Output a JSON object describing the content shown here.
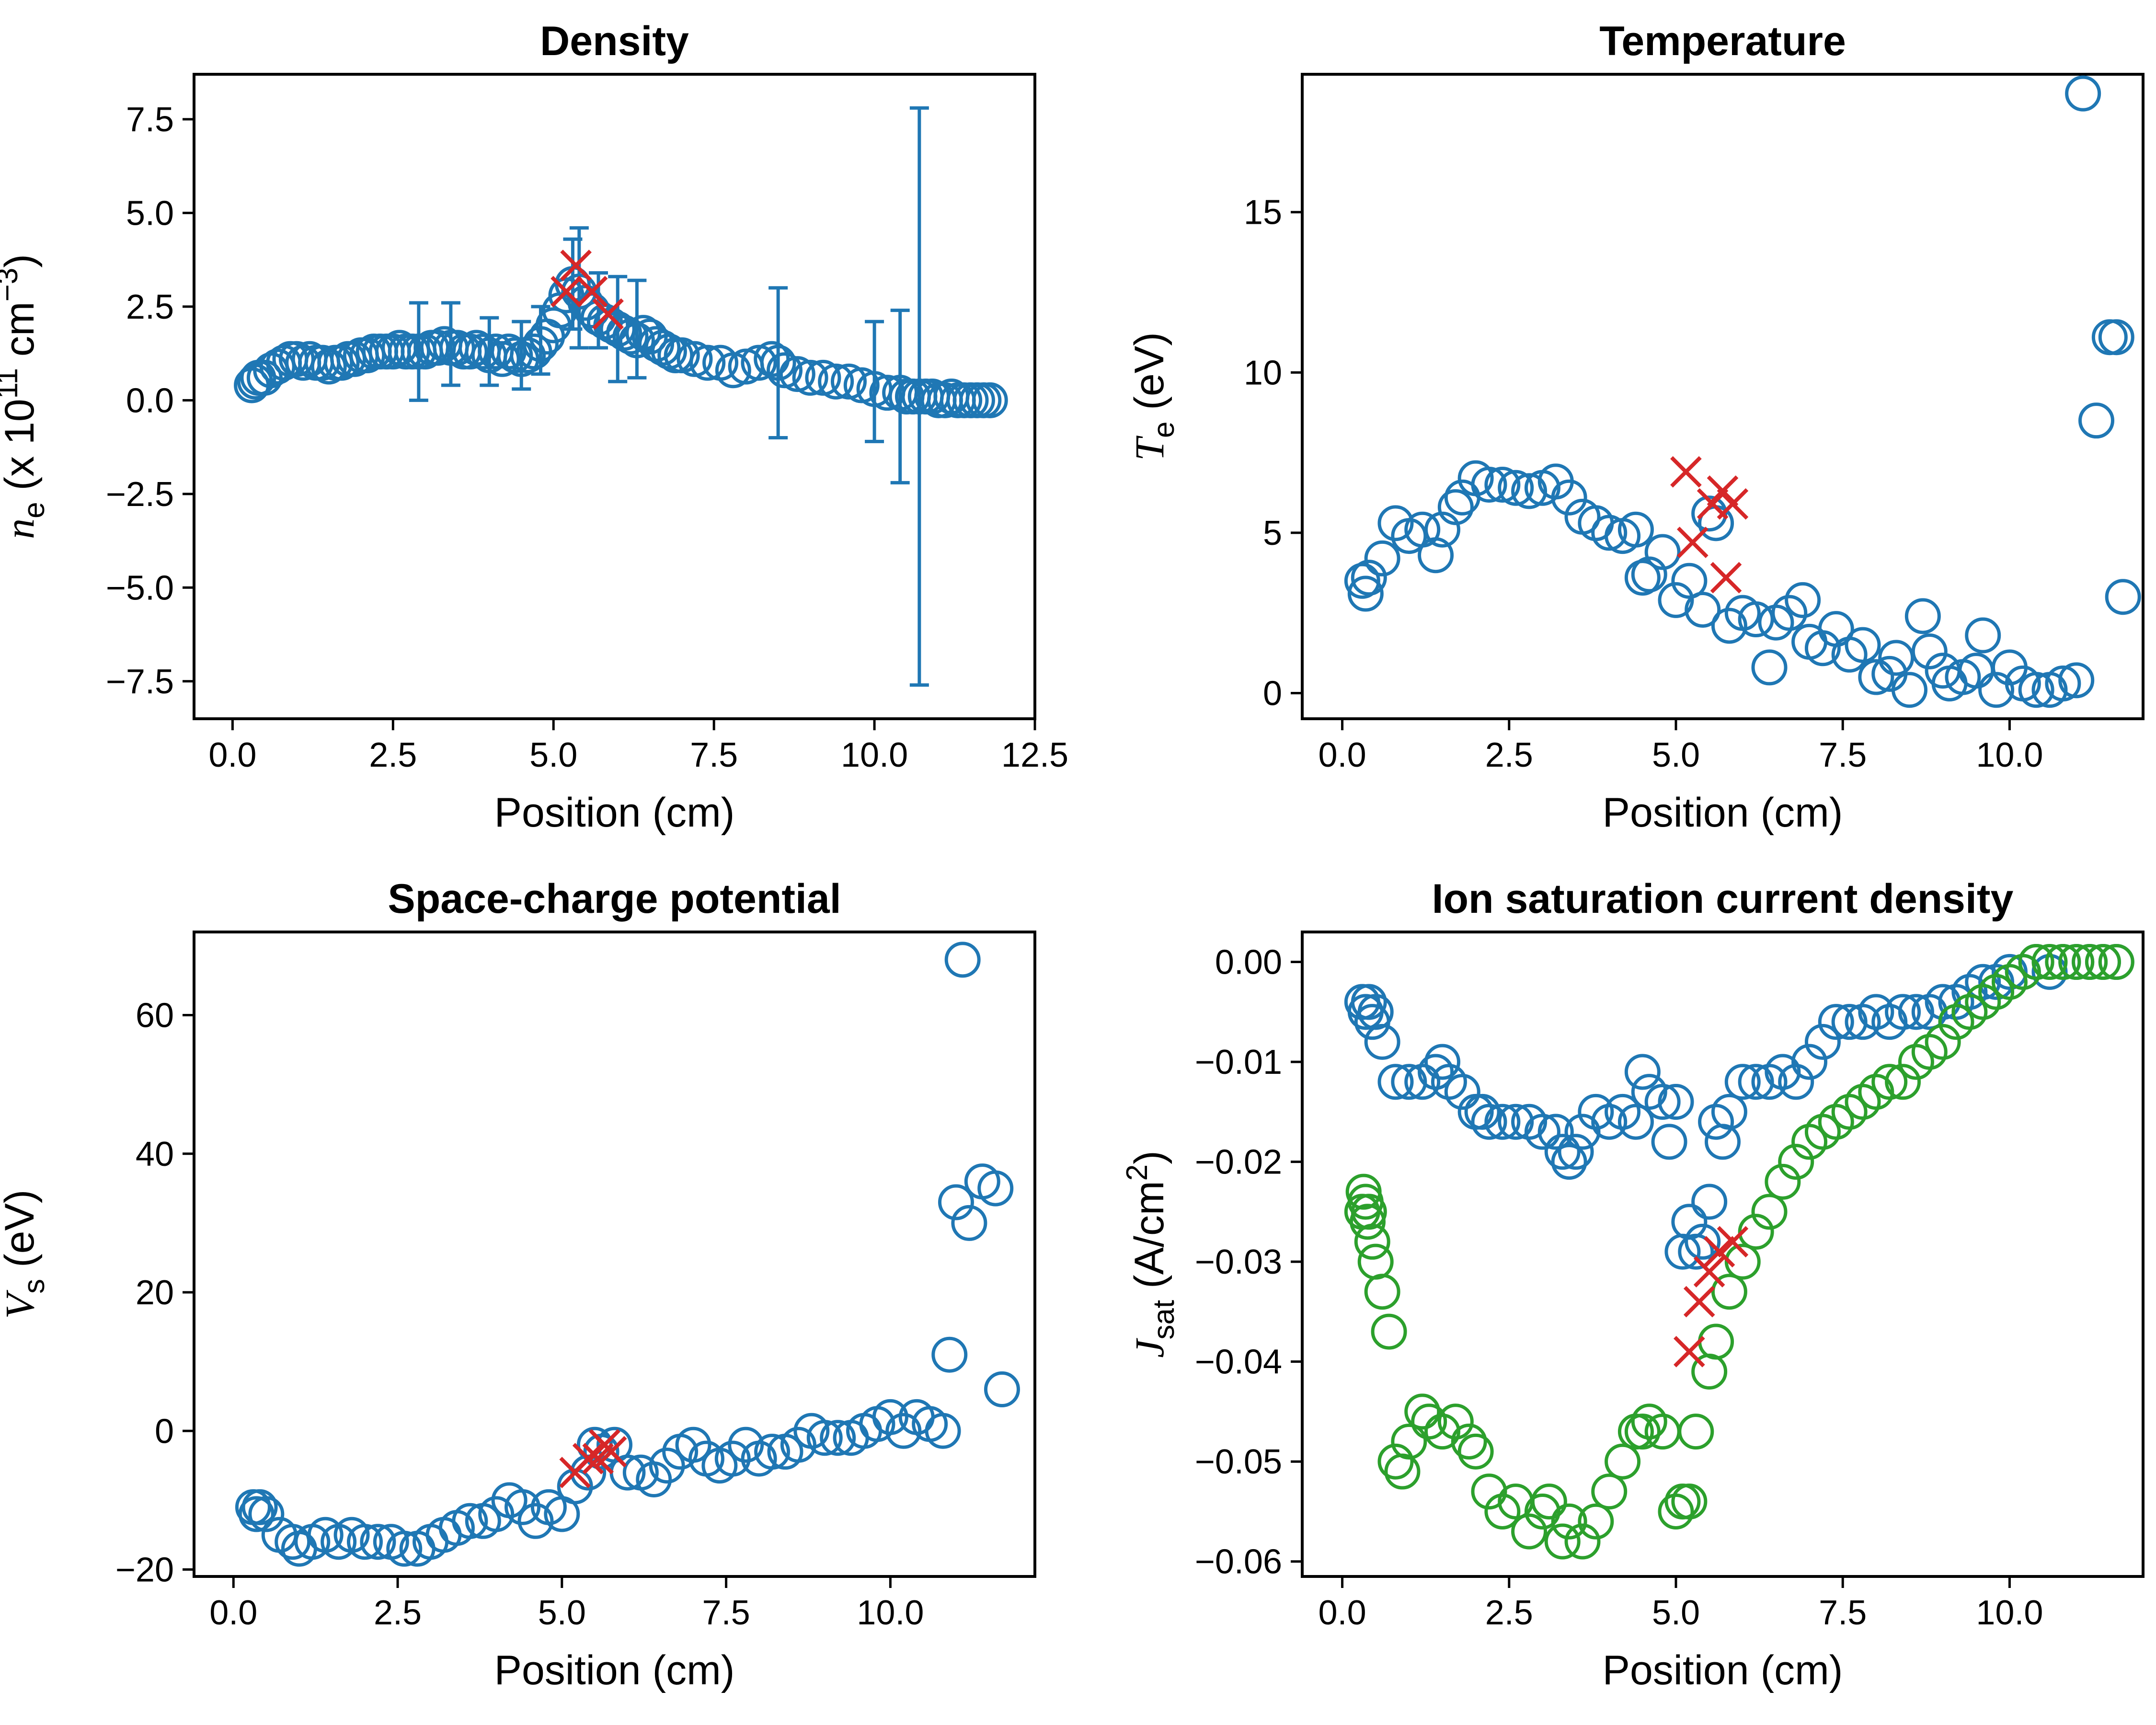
{
  "colors": {
    "blue": "#1f77b4",
    "green": "#2ca02c",
    "red": "#d62728"
  },
  "chart_data": [
    {
      "id": "density",
      "type": "scatter",
      "title": "Density",
      "xlabel": "Position (cm)",
      "ylabel": {
        "symbol": "n",
        "sub": "e",
        "text": " (x 10",
        "sup": "11",
        "tail": " cm",
        "sup2": "−3",
        "close": ")"
      },
      "xlim": [
        -0.6,
        12.5
      ],
      "ylim": [
        -8.5,
        8.7
      ],
      "xticks": [
        0,
        2.5,
        5,
        7.5,
        10,
        12.5
      ],
      "xtick_labels": [
        "0.0",
        "2.5",
        "5.0",
        "7.5",
        "10.0",
        "12.5"
      ],
      "yticks": [
        -7.5,
        -5,
        -2.5,
        0,
        2.5,
        5,
        7.5
      ],
      "ytick_labels": [
        "−7.5",
        "−5.0",
        "−2.5",
        "0.0",
        "2.5",
        "5.0",
        "7.5"
      ],
      "series": [
        {
          "marker": "circle",
          "color": "#1f77b4",
          "x": [
            0.3,
            0.35,
            0.4,
            0.5,
            0.6,
            0.7,
            0.8,
            0.9,
            1.0,
            1.1,
            1.2,
            1.3,
            1.4,
            1.5,
            1.6,
            1.7,
            1.8,
            1.9,
            2.0,
            2.1,
            2.2,
            2.3,
            2.4,
            2.5,
            2.6,
            2.7,
            2.8,
            2.9,
            3.0,
            3.1,
            3.2,
            3.3,
            3.4,
            3.5,
            3.6,
            3.7,
            3.8,
            3.9,
            4.0,
            4.1,
            4.2,
            4.3,
            4.4,
            4.5,
            4.6,
            4.7,
            4.8,
            4.9,
            5.0,
            5.1,
            5.2,
            5.3,
            5.4,
            5.5,
            5.6,
            5.7,
            5.8,
            5.9,
            6.0,
            6.1,
            6.2,
            6.3,
            6.4,
            6.5,
            6.6,
            6.7,
            6.8,
            6.9,
            7.0,
            7.2,
            7.4,
            7.6,
            7.8,
            8.0,
            8.2,
            8.4,
            8.5,
            8.6,
            8.8,
            9.0,
            9.2,
            9.4,
            9.6,
            9.8,
            10.0,
            10.2,
            10.4,
            10.5,
            10.6,
            10.7,
            10.8,
            10.9,
            11.0,
            11.1,
            11.2,
            11.3,
            11.4,
            11.5,
            11.6,
            11.7,
            11.8
          ],
          "y": [
            0.4,
            0.5,
            0.6,
            0.6,
            0.8,
            0.9,
            1.0,
            1.1,
            1.1,
            1.0,
            1.1,
            1.0,
            1.0,
            0.9,
            1.0,
            1.0,
            1.1,
            1.1,
            1.2,
            1.2,
            1.3,
            1.3,
            1.3,
            1.3,
            1.4,
            1.3,
            1.3,
            1.3,
            1.3,
            1.4,
            1.4,
            1.5,
            1.4,
            1.4,
            1.3,
            1.3,
            1.4,
            1.3,
            1.2,
            1.3,
            1.1,
            1.3,
            1.2,
            1.1,
            1.2,
            1.3,
            1.5,
            1.7,
            2.0,
            2.4,
            2.8,
            3.1,
            2.9,
            2.6,
            2.4,
            2.2,
            2.1,
            2.0,
            1.9,
            1.8,
            1.7,
            1.6,
            1.8,
            1.7,
            1.5,
            1.4,
            1.3,
            1.2,
            1.2,
            1.1,
            1.0,
            1.0,
            0.8,
            0.9,
            1.0,
            1.1,
            1.0,
            0.8,
            0.7,
            0.6,
            0.6,
            0.5,
            0.5,
            0.4,
            0.3,
            0.2,
            0.2,
            0.1,
            0.1,
            0.1,
            0.1,
            0.1,
            0.0,
            0.0,
            0.1,
            0.0,
            0.0,
            0.0,
            0.0,
            0.0,
            0.0
          ]
        },
        {
          "marker": "x",
          "color": "#d62728",
          "x": [
            5.2,
            5.35,
            5.6,
            5.85
          ],
          "y": [
            2.9,
            3.6,
            2.9,
            2.3
          ]
        }
      ],
      "errorbars": [
        {
          "x": 2.9,
          "y": 1.3,
          "err": 1.3
        },
        {
          "x": 3.4,
          "y": 1.5,
          "err": 1.1
        },
        {
          "x": 4.0,
          "y": 1.3,
          "err": 0.9
        },
        {
          "x": 4.5,
          "y": 1.2,
          "err": 0.9
        },
        {
          "x": 4.8,
          "y": 1.6,
          "err": 0.9
        },
        {
          "x": 5.3,
          "y": 3.1,
          "err": 1.2
        },
        {
          "x": 5.4,
          "y": 3.0,
          "err": 1.6
        },
        {
          "x": 5.7,
          "y": 2.4,
          "err": 1.0
        },
        {
          "x": 6.0,
          "y": 1.9,
          "err": 1.4
        },
        {
          "x": 6.3,
          "y": 1.9,
          "err": 1.3
        },
        {
          "x": 8.5,
          "y": 1.0,
          "err": 2.0
        },
        {
          "x": 10.0,
          "y": 0.5,
          "err": 1.6
        },
        {
          "x": 10.4,
          "y": 0.1,
          "err": 2.3
        },
        {
          "x": 10.7,
          "y": 0.1,
          "err": 7.7
        }
      ]
    },
    {
      "id": "temperature",
      "type": "scatter",
      "title": "Temperature",
      "xlabel": "Position (cm)",
      "ylabel": {
        "symbol": "T",
        "sub": "e",
        "text": " (eV)"
      },
      "xlim": [
        -0.6,
        12.0
      ],
      "ylim": [
        -0.8,
        19.3
      ],
      "xticks": [
        0,
        2.5,
        5,
        7.5,
        10
      ],
      "xtick_labels": [
        "0.0",
        "2.5",
        "5.0",
        "7.5",
        "10.0"
      ],
      "yticks": [
        0,
        5,
        10,
        15
      ],
      "ytick_labels": [
        "0",
        "5",
        "10",
        "15"
      ],
      "series": [
        {
          "marker": "circle",
          "color": "#1f77b4",
          "x": [
            0.3,
            0.35,
            0.4,
            0.6,
            0.8,
            1.0,
            1.2,
            1.4,
            1.5,
            1.7,
            1.8,
            2.0,
            2.2,
            2.4,
            2.6,
            2.8,
            3.0,
            3.2,
            3.4,
            3.6,
            3.8,
            4.0,
            4.2,
            4.4,
            4.5,
            4.6,
            4.8,
            5.0,
            5.2,
            5.4,
            5.5,
            5.6,
            5.8,
            6.0,
            6.2,
            6.4,
            6.5,
            6.7,
            6.9,
            7.0,
            7.2,
            7.4,
            7.6,
            7.8,
            8.0,
            8.2,
            8.3,
            8.5,
            8.7,
            8.8,
            9.0,
            9.1,
            9.3,
            9.5,
            9.6,
            9.8,
            10.0,
            10.2,
            10.4,
            10.6,
            10.8,
            11.0,
            11.1,
            11.3,
            11.5,
            11.6,
            11.7
          ],
          "y": [
            3.5,
            3.1,
            3.6,
            4.2,
            5.3,
            4.9,
            5.1,
            4.3,
            5.1,
            5.8,
            6.1,
            6.7,
            6.5,
            6.5,
            6.4,
            6.3,
            6.4,
            6.6,
            6.1,
            5.5,
            5.3,
            5.0,
            4.9,
            5.1,
            3.6,
            3.7,
            4.4,
            2.9,
            3.5,
            2.6,
            5.6,
            5.3,
            2.1,
            2.5,
            2.3,
            0.8,
            2.2,
            2.5,
            2.9,
            1.6,
            1.4,
            2.0,
            1.2,
            1.5,
            0.5,
            0.6,
            1.1,
            0.1,
            2.4,
            1.3,
            0.7,
            0.3,
            0.5,
            0.7,
            1.8,
            0.1,
            0.8,
            0.3,
            0.1,
            0.1,
            0.3,
            0.4,
            18.7,
            8.5,
            11.1,
            11.1,
            3.0
          ]
        },
        {
          "marker": "x",
          "color": "#d62728",
          "x": [
            5.15,
            5.25,
            5.55,
            5.7,
            5.85,
            5.75
          ],
          "y": [
            6.9,
            4.7,
            5.9,
            6.3,
            5.9,
            3.6
          ]
        }
      ]
    },
    {
      "id": "space-charge",
      "type": "scatter",
      "title": "Space-charge potential",
      "xlabel": "Position (cm)",
      "ylabel": {
        "symbol": "V",
        "sub": "s",
        "text": " (eV)"
      },
      "xlim": [
        -0.6,
        12.2
      ],
      "ylim": [
        -21,
        72
      ],
      "xticks": [
        0,
        2.5,
        5,
        7.5,
        10
      ],
      "xtick_labels": [
        "0.0",
        "2.5",
        "5.0",
        "7.5",
        "10.0"
      ],
      "yticks": [
        -20,
        0,
        20,
        40,
        60
      ],
      "ytick_labels": [
        "−20",
        "0",
        "20",
        "40",
        "60"
      ],
      "series": [
        {
          "marker": "circle",
          "color": "#1f77b4",
          "x": [
            0.3,
            0.35,
            0.4,
            0.5,
            0.7,
            0.9,
            1.0,
            1.2,
            1.4,
            1.6,
            1.8,
            2.0,
            2.2,
            2.4,
            2.6,
            2.8,
            3.0,
            3.2,
            3.4,
            3.6,
            3.8,
            4.0,
            4.2,
            4.4,
            4.6,
            4.8,
            5.0,
            5.2,
            5.4,
            5.5,
            5.6,
            5.8,
            6.0,
            6.2,
            6.4,
            6.6,
            6.8,
            7.0,
            7.2,
            7.4,
            7.6,
            7.8,
            8.0,
            8.2,
            8.4,
            8.6,
            8.8,
            9.0,
            9.2,
            9.4,
            9.6,
            9.8,
            10.0,
            10.2,
            10.4,
            10.6,
            10.8,
            10.9,
            11.0,
            11.1,
            11.2,
            11.4,
            11.6,
            11.7
          ],
          "y": [
            -11,
            -12,
            -11,
            -12,
            -15,
            -16,
            -17,
            -16,
            -15,
            -16,
            -15,
            -16,
            -16,
            -16,
            -17,
            -17,
            -16,
            -15,
            -14,
            -13,
            -13,
            -12,
            -10,
            -11,
            -13,
            -11,
            -12,
            -8,
            -6,
            -2,
            -3,
            -2,
            -6,
            -6,
            -7,
            -5,
            -3,
            -2,
            -4,
            -5,
            -4,
            -2,
            -4,
            -3,
            -3,
            -2,
            0,
            -1,
            -1,
            -1,
            0,
            1,
            2,
            0,
            2,
            1,
            0,
            11,
            33,
            68,
            30,
            36,
            35,
            6
          ]
        },
        {
          "marker": "x",
          "color": "#d62728",
          "x": [
            5.2,
            5.4,
            5.55,
            5.65,
            5.75
          ],
          "y": [
            -6,
            -4,
            -4,
            -2,
            -3
          ]
        }
      ]
    },
    {
      "id": "ion-saturation",
      "type": "scatter",
      "title": "Ion saturation current density",
      "xlabel": "Position (cm)",
      "ylabel": {
        "symbol": "J",
        "sub": "sat",
        "text": " (A/cm",
        "sup": "2",
        "close": ")"
      },
      "xlim": [
        -0.6,
        12.0
      ],
      "ylim": [
        -0.0615,
        0.003
      ],
      "xticks": [
        0,
        2.5,
        5,
        7.5,
        10
      ],
      "xtick_labels": [
        "0.0",
        "2.5",
        "5.0",
        "7.5",
        "10.0"
      ],
      "yticks": [
        -0.06,
        -0.05,
        -0.04,
        -0.03,
        -0.02,
        -0.01,
        0.0
      ],
      "ytick_labels": [
        "−0.06",
        "−0.05",
        "−0.04",
        "−0.03",
        "−0.02",
        "−0.01",
        "0.00"
      ],
      "series": [
        {
          "marker": "circle",
          "color": "#1f77b4",
          "x": [
            0.3,
            0.35,
            0.4,
            0.45,
            0.5,
            0.6,
            0.8,
            1.0,
            1.2,
            1.4,
            1.5,
            1.6,
            1.8,
            2.0,
            2.1,
            2.2,
            2.4,
            2.6,
            2.8,
            3.0,
            3.2,
            3.3,
            3.4,
            3.5,
            3.6,
            3.8,
            4.0,
            4.2,
            4.4,
            4.5,
            4.6,
            4.8,
            4.9,
            5.0,
            5.1,
            5.2,
            5.3,
            5.4,
            5.5,
            5.6,
            5.7,
            5.8,
            6.0,
            6.2,
            6.4,
            6.6,
            6.8,
            7.0,
            7.2,
            7.4,
            7.6,
            7.8,
            8.0,
            8.2,
            8.4,
            8.6,
            8.8,
            9.0,
            9.2,
            9.4,
            9.6,
            9.8,
            10.0,
            10.2,
            10.4,
            10.6,
            10.8,
            11.0,
            11.2,
            11.4,
            11.6
          ],
          "y": [
            -0.004,
            -0.005,
            -0.004,
            -0.006,
            -0.005,
            -0.008,
            -0.012,
            -0.012,
            -0.012,
            -0.011,
            -0.01,
            -0.012,
            -0.013,
            -0.015,
            -0.015,
            -0.016,
            -0.016,
            -0.016,
            -0.016,
            -0.017,
            -0.017,
            -0.019,
            -0.02,
            -0.019,
            -0.017,
            -0.015,
            -0.016,
            -0.015,
            -0.016,
            -0.011,
            -0.013,
            -0.014,
            -0.018,
            -0.014,
            -0.029,
            -0.026,
            -0.029,
            -0.028,
            -0.024,
            -0.016,
            -0.018,
            -0.015,
            -0.012,
            -0.012,
            -0.012,
            -0.011,
            -0.012,
            -0.01,
            -0.008,
            -0.006,
            -0.006,
            -0.006,
            -0.005,
            -0.006,
            -0.005,
            -0.005,
            -0.005,
            -0.004,
            -0.004,
            -0.003,
            -0.002,
            -0.002,
            -0.001,
            -0.001,
            0.0,
            -0.001,
            0.0,
            0.0,
            0.0,
            0.0,
            0.0
          ]
        },
        {
          "marker": "circle",
          "color": "#2ca02c",
          "x": [
            0.3,
            0.32,
            0.35,
            0.38,
            0.4,
            0.45,
            0.5,
            0.6,
            0.7,
            0.8,
            0.9,
            1.0,
            1.2,
            1.3,
            1.5,
            1.7,
            1.9,
            2.0,
            2.2,
            2.4,
            2.6,
            2.8,
            3.0,
            3.1,
            3.3,
            3.4,
            3.6,
            3.8,
            4.0,
            4.2,
            4.4,
            4.5,
            4.6,
            4.8,
            5.0,
            5.1,
            5.2,
            5.3,
            5.5,
            5.6,
            5.8,
            6.0,
            6.2,
            6.4,
            6.6,
            6.8,
            7.0,
            7.2,
            7.4,
            7.6,
            7.8,
            8.0,
            8.2,
            8.4,
            8.6,
            8.8,
            9.0,
            9.2,
            9.4,
            9.6,
            9.8,
            10.0,
            10.2,
            10.4,
            10.6,
            10.8,
            11.0,
            11.2,
            11.4,
            11.6
          ],
          "y": [
            -0.025,
            -0.023,
            -0.024,
            -0.026,
            -0.025,
            -0.028,
            -0.03,
            -0.033,
            -0.037,
            -0.05,
            -0.051,
            -0.048,
            -0.045,
            -0.046,
            -0.047,
            -0.046,
            -0.048,
            -0.049,
            -0.053,
            -0.055,
            -0.054,
            -0.057,
            -0.055,
            -0.054,
            -0.058,
            -0.056,
            -0.058,
            -0.056,
            -0.053,
            -0.05,
            -0.047,
            -0.047,
            -0.046,
            -0.047,
            -0.055,
            -0.054,
            -0.054,
            -0.047,
            -0.041,
            -0.038,
            -0.033,
            -0.03,
            -0.027,
            -0.025,
            -0.022,
            -0.02,
            -0.018,
            -0.017,
            -0.016,
            -0.015,
            -0.014,
            -0.013,
            -0.012,
            -0.012,
            -0.01,
            -0.009,
            -0.008,
            -0.006,
            -0.005,
            -0.004,
            -0.003,
            -0.002,
            -0.001,
            0.0,
            0.0,
            0.0,
            0.0,
            0.0,
            0.0,
            0.0
          ]
        },
        {
          "marker": "x",
          "color": "#d62728",
          "x": [
            5.2,
            5.35,
            5.5,
            5.65,
            5.85
          ],
          "y": [
            -0.039,
            -0.034,
            -0.031,
            -0.029,
            -0.028
          ]
        }
      ]
    }
  ]
}
